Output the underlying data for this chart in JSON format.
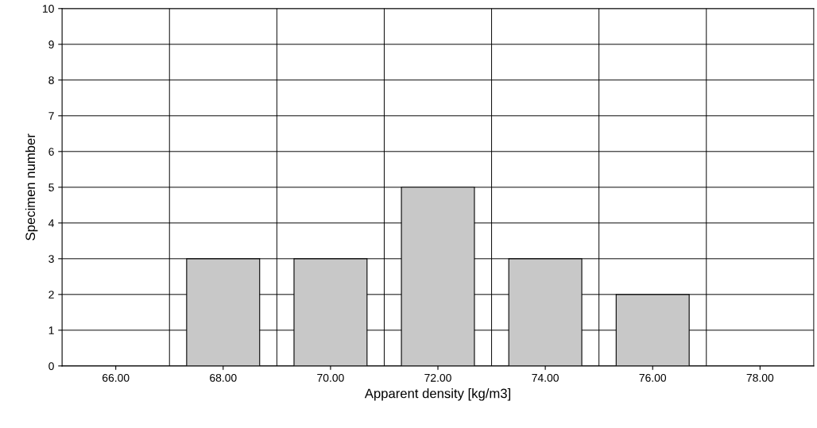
{
  "chart_data": {
    "type": "bar",
    "xlabel": "Apparent density [kg/m3]",
    "ylabel": "Specimen number",
    "categories": [
      "66.00",
      "68.00",
      "70.00",
      "72.00",
      "74.00",
      "76.00",
      "78.00"
    ],
    "values": [
      0,
      3,
      3,
      5,
      3,
      2,
      0
    ],
    "color": "#c8c8c8",
    "ylim": [
      0,
      10
    ],
    "yticks": [
      0,
      1,
      2,
      3,
      4,
      5,
      6,
      7,
      8,
      9,
      10
    ],
    "grid": true
  }
}
